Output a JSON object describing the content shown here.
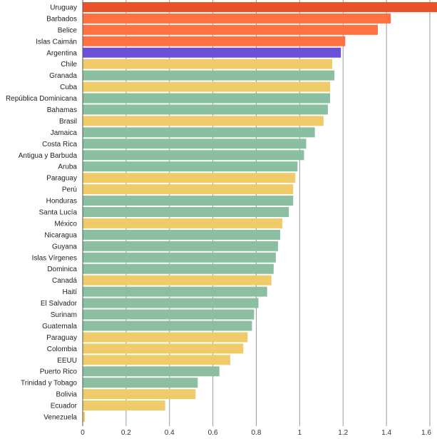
{
  "chart_data": {
    "type": "bar",
    "orientation": "horizontal",
    "title": "",
    "xlabel": "",
    "ylabel": "",
    "xlim": [
      0,
      1.6
    ],
    "x_ticks": [
      0,
      0.2,
      0.4,
      0.6,
      0.8,
      1,
      1.2,
      1.4,
      1.6
    ],
    "grid": true,
    "colors": {
      "red": "#e8532a",
      "orange": "#ff7043",
      "purple": "#6c4fd8",
      "yellow": "#efcb6a",
      "green": "#8bbfa1"
    },
    "categories": [
      "Uruguay",
      "Barbados",
      "Belice",
      "Islas Caimán",
      "Argentina",
      "Chile",
      "Granada",
      "Cuba",
      "República Dominicana",
      "Bahamas",
      "Brasil",
      "Jamaica",
      "Costa Rica",
      "Antigua y Barbuda",
      "Aruba",
      "Paraguay",
      "Perú",
      "Honduras",
      "Santa Lucía",
      "México",
      "Nicaragua",
      "Guyana",
      "Islas Vírgenes",
      "Dominica",
      "Canadá",
      "Haití",
      "El Salvador",
      "Surinam",
      "Guatemala",
      "Paraguay",
      "Colombia",
      "EEUU",
      "Puerto Rico",
      "Trinidad y Tobago",
      "Bolivia",
      "Ecuador",
      "Venezuela"
    ],
    "values": [
      1.64,
      1.42,
      1.36,
      1.21,
      1.19,
      1.15,
      1.16,
      1.14,
      1.14,
      1.13,
      1.11,
      1.07,
      1.03,
      1.02,
      0.99,
      0.98,
      0.97,
      0.97,
      0.95,
      0.92,
      0.91,
      0.9,
      0.89,
      0.88,
      0.87,
      0.85,
      0.81,
      0.79,
      0.78,
      0.76,
      0.74,
      0.68,
      0.63,
      0.53,
      0.52,
      0.38,
      0.01
    ],
    "bar_colors": [
      "red",
      "orange",
      "orange",
      "orange",
      "purple",
      "yellow",
      "green",
      "yellow",
      "green",
      "green",
      "yellow",
      "green",
      "green",
      "green",
      "green",
      "yellow",
      "yellow",
      "green",
      "green",
      "yellow",
      "green",
      "green",
      "green",
      "green",
      "yellow",
      "green",
      "green",
      "green",
      "green",
      "yellow",
      "yellow",
      "yellow",
      "green",
      "green",
      "yellow",
      "yellow",
      "yellow"
    ]
  }
}
